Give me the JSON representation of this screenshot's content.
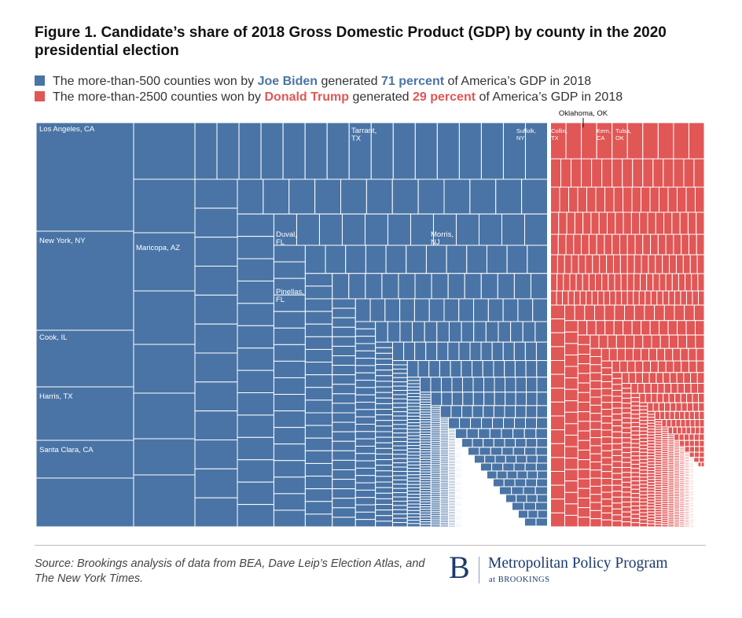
{
  "chart_data": {
    "type": "treemap",
    "title": "Figure 1. Candidate’s share of 2018 Gross Domestic Product (GDP) by county in the 2020 presidential election",
    "legend": {
      "placement": "top-left",
      "biden": {
        "prefix": "The more-than-500 counties won by ",
        "name": "Joe Biden",
        "middle": " generated ",
        "percent_text": "71 percent",
        "suffix": " of America’s GDP in 2018"
      },
      "trump": {
        "prefix": "The more-than-2500 counties won by ",
        "name": "Donald Trump",
        "middle": " generated ",
        "percent_text": "29 percent",
        "suffix": " of America’s GDP in 2018"
      }
    },
    "series": [
      {
        "name": "Joe Biden",
        "share_percent": 71,
        "color": "#4a74a5"
      },
      {
        "name": "Donald Trump",
        "share_percent": 29,
        "color": "#e05756"
      }
    ],
    "labels": {
      "biden": [
        {
          "line1": "Los Angeles, CA",
          "line2": ""
        },
        {
          "line1": "New York, NY",
          "line2": ""
        },
        {
          "line1": "Cook, IL",
          "line2": ""
        },
        {
          "line1": "Harris, TX",
          "line2": ""
        },
        {
          "line1": "Santa Clara, CA",
          "line2": ""
        },
        {
          "line1": "Maricopa, AZ",
          "line2": ""
        },
        {
          "line1": "Tarrant,",
          "line2": "TX"
        },
        {
          "line1": "Duval,",
          "line2": "FL"
        },
        {
          "line1": "Morris,",
          "line2": "NJ"
        },
        {
          "line1": "Pinellas,",
          "line2": "FL"
        }
      ],
      "trump": [
        {
          "line1": "Suffolk,",
          "line2": "NY"
        },
        {
          "line1": "Collin,",
          "line2": "TX"
        },
        {
          "line1": "Kern,",
          "line2": "CA"
        },
        {
          "line1": "Tulsa,",
          "line2": "OK"
        }
      ],
      "callout": "Oklahoma, OK"
    },
    "colors": {
      "biden": "#4a74a5",
      "trump": "#e05756",
      "grid": "#ffffff"
    }
  },
  "source": "Source: Brookings analysis of data from BEA, Dave Leip’s Election Atlas, and The New York Times.",
  "logo": {
    "letter": "B",
    "name": "Metropolitan Policy Program",
    "sub": "at BROOKINGS"
  }
}
